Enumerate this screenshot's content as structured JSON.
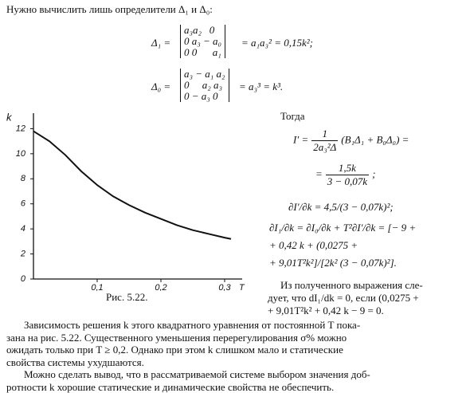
{
  "intro": "Нужно вычислить лишь определители Δ₁ и Δ₀:",
  "formula_1": {
    "lhs": "Δ₁ =",
    "matrix": [
      "a₃a₂   0",
      "0 a₃ − a₀",
      "0 0      a₁"
    ],
    "rhs": "= a₁a₃² = 0,15k²;"
  },
  "formula_2": {
    "lhs": "Δ₀ =",
    "matrix": [
      "a₃ − a₁ a₂",
      "0     a₂ a₃",
      "0 − a₃ 0"
    ],
    "rhs": "= a₃³ = k³."
  },
  "right": {
    "then": "Тогда",
    "i_prime": {
      "lhs": "I′ =",
      "num": "1",
      "den": "2a₃²Δ",
      "rhs": "(B₁Δ₁ + B₀Δ₀) ="
    },
    "i_prime_2": {
      "lhs": "=",
      "num": "1,5k",
      "den": "3 − 0,07k",
      "rhs": ";"
    },
    "lines": [
      "∂I′/∂k = 4,5/(3 − 0,07k)²;",
      "∂I₁/∂k = ∂I₀/∂k + T²∂I′/∂k = [− 9 +",
      "+ 0,42 k + (0,0275 +",
      "+ 9,01T²k²]/[2k² (3 − 0,07k)²]."
    ],
    "conclusion": [
      "Из полученного выражения сле-",
      "дует, что dI₁/dk = 0, если (0,0275 +",
      "+ 9,01T²k² + 0,42 k − 9 = 0."
    ]
  },
  "chart_data": {
    "type": "line",
    "ylabel": "k",
    "xlabel": "T",
    "x": [
      0,
      0.025,
      0.05,
      0.075,
      0.1,
      0.125,
      0.15,
      0.175,
      0.2,
      0.225,
      0.25,
      0.275,
      0.3,
      0.31
    ],
    "values": [
      11.8,
      11.0,
      9.9,
      8.6,
      7.5,
      6.6,
      5.9,
      5.3,
      4.8,
      4.3,
      3.9,
      3.6,
      3.3,
      3.2
    ],
    "color": "#111111",
    "xlim": [
      0,
      0.32
    ],
    "ylim": [
      0,
      12.6
    ],
    "xticks": [
      {
        "value": 0.1,
        "label": "0,1"
      },
      {
        "value": 0.2,
        "label": "0,2"
      },
      {
        "value": 0.3,
        "label": "0,3"
      }
    ],
    "yticks": [
      0,
      2,
      4,
      6,
      8,
      10,
      12
    ],
    "grid": false
  },
  "caption": "Рис. 5.22.",
  "paragraphs": [
    [
      "Зависимость решения k этого квадратного уравнения от постоянной T пока-",
      "зана на рис. 5.22. Существенного уменьшения перерегулирования σ% можно",
      "ожидать только при T ≥ 0,2. Однако при этом k слишком мало и статические",
      "свойства системы ухудшаются."
    ],
    [
      "Можно сделать вывод, что в рассматриваемой системе выбором значения доб-",
      "ротности k хорошие статические и динамические свойства не обеспечить."
    ]
  ]
}
